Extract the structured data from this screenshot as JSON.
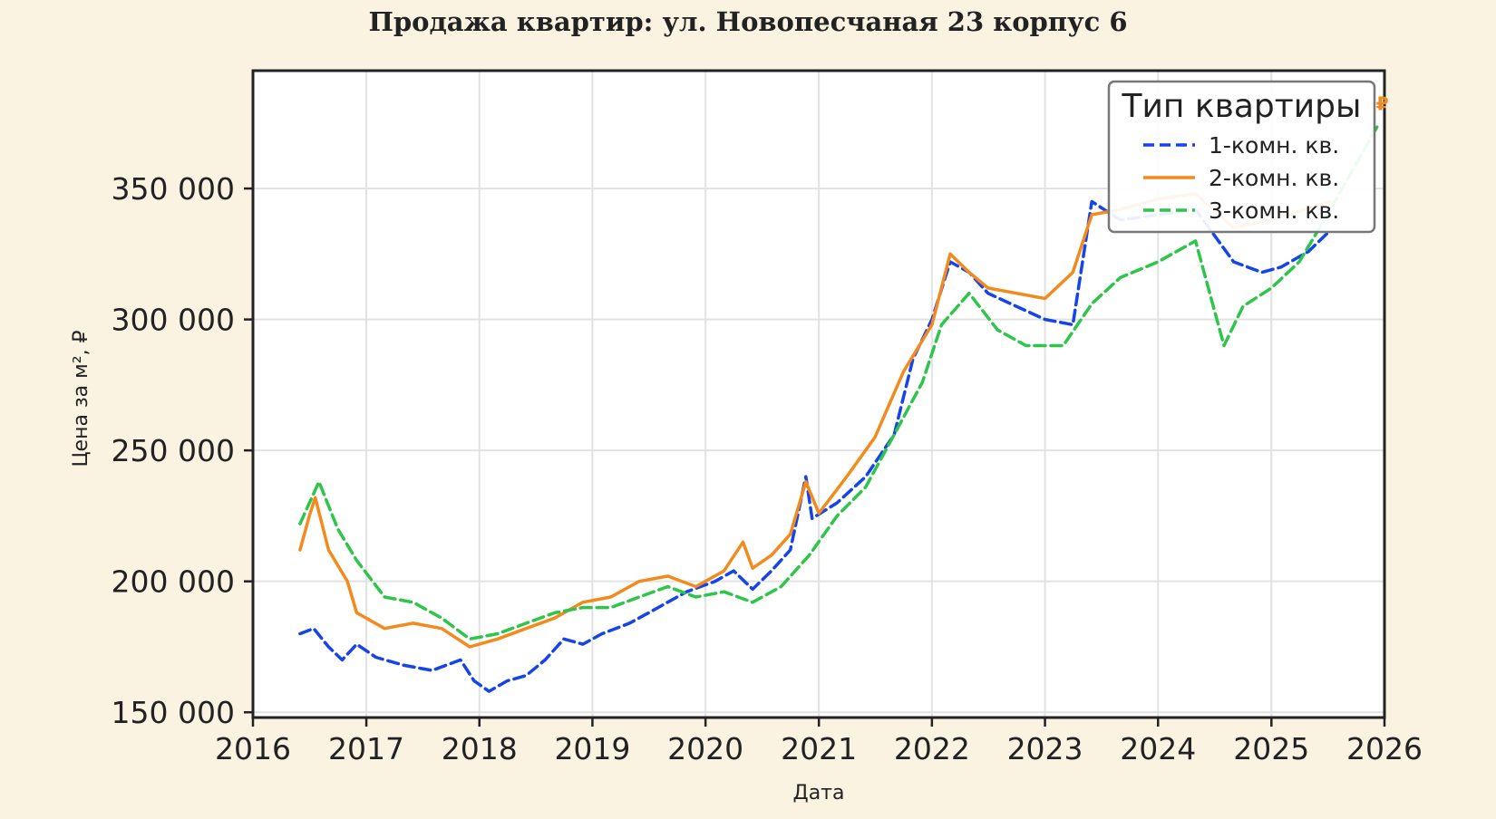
{
  "chart_data": {
    "type": "line",
    "title": "Продажа квартир: ул. Новопесчаная 23 корпус 6",
    "xlabel": "Дата",
    "ylabel": "Цена за м², ₽",
    "xlim": [
      "2016-01-01",
      "2026-01-01"
    ],
    "ylim": [
      148000,
      395000
    ],
    "x_ticks": [
      "2016",
      "2017",
      "2018",
      "2019",
      "2020",
      "2021",
      "2022",
      "2023",
      "2024",
      "2025",
      "2026"
    ],
    "y_ticks": [
      150000,
      200000,
      250000,
      300000,
      350000
    ],
    "y_tick_labels": [
      "150 000",
      "200 000",
      "250 000",
      "300 000",
      "350 000"
    ],
    "grid": true,
    "legend": {
      "title": "Тип квартиры",
      "position": "top-right"
    },
    "series": [
      {
        "name": "1-комн. кв.",
        "color": "#1544e8",
        "style": "dashed",
        "points": [
          [
            "2016-06-01",
            180000
          ],
          [
            "2016-07-15",
            182000
          ],
          [
            "2016-09-01",
            175000
          ],
          [
            "2016-10-15",
            170000
          ],
          [
            "2016-12-01",
            176000
          ],
          [
            "2017-02-01",
            171000
          ],
          [
            "2017-05-01",
            168000
          ],
          [
            "2017-08-01",
            166000
          ],
          [
            "2017-11-01",
            170000
          ],
          [
            "2017-12-15",
            162000
          ],
          [
            "2018-02-01",
            158000
          ],
          [
            "2018-04-01",
            162000
          ],
          [
            "2018-06-01",
            164000
          ],
          [
            "2018-08-01",
            170000
          ],
          [
            "2018-10-01",
            178000
          ],
          [
            "2018-12-01",
            176000
          ],
          [
            "2019-02-01",
            180000
          ],
          [
            "2019-05-01",
            184000
          ],
          [
            "2019-08-01",
            190000
          ],
          [
            "2019-11-01",
            196000
          ],
          [
            "2020-02-01",
            200000
          ],
          [
            "2020-04-01",
            204000
          ],
          [
            "2020-06-01",
            197000
          ],
          [
            "2020-08-01",
            204000
          ],
          [
            "2020-10-01",
            212000
          ],
          [
            "2020-11-20",
            240000
          ],
          [
            "2020-12-10",
            224000
          ],
          [
            "2021-03-01",
            230000
          ],
          [
            "2021-06-01",
            240000
          ],
          [
            "2021-09-01",
            256000
          ],
          [
            "2021-11-01",
            285000
          ],
          [
            "2022-01-01",
            300000
          ],
          [
            "2022-03-01",
            322000
          ],
          [
            "2022-05-01",
            318000
          ],
          [
            "2022-07-01",
            310000
          ],
          [
            "2022-10-01",
            305000
          ],
          [
            "2023-01-01",
            300000
          ],
          [
            "2023-04-01",
            298000
          ],
          [
            "2023-06-01",
            345000
          ],
          [
            "2023-09-01",
            338000
          ],
          [
            "2024-01-01",
            340000
          ],
          [
            "2024-05-01",
            342000
          ],
          [
            "2024-09-01",
            322000
          ],
          [
            "2024-12-01",
            318000
          ],
          [
            "2025-02-01",
            320000
          ],
          [
            "2025-05-01",
            326000
          ],
          [
            "2025-07-10",
            334000
          ]
        ]
      },
      {
        "name": "2-комн. кв.",
        "color": "#f28a1e",
        "style": "solid",
        "points": [
          [
            "2016-06-01",
            212000
          ],
          [
            "2016-07-01",
            225000
          ],
          [
            "2016-07-20",
            232000
          ],
          [
            "2016-09-01",
            212000
          ],
          [
            "2016-11-01",
            200000
          ],
          [
            "2016-12-01",
            188000
          ],
          [
            "2017-03-01",
            182000
          ],
          [
            "2017-06-01",
            184000
          ],
          [
            "2017-09-01",
            182000
          ],
          [
            "2017-12-01",
            175000
          ],
          [
            "2018-03-01",
            178000
          ],
          [
            "2018-06-01",
            182000
          ],
          [
            "2018-09-01",
            186000
          ],
          [
            "2018-12-01",
            192000
          ],
          [
            "2019-03-01",
            194000
          ],
          [
            "2019-06-01",
            200000
          ],
          [
            "2019-09-01",
            202000
          ],
          [
            "2019-12-01",
            198000
          ],
          [
            "2020-03-01",
            204000
          ],
          [
            "2020-05-01",
            215000
          ],
          [
            "2020-06-01",
            205000
          ],
          [
            "2020-08-01",
            210000
          ],
          [
            "2020-10-01",
            218000
          ],
          [
            "2020-11-20",
            238000
          ],
          [
            "2021-01-01",
            226000
          ],
          [
            "2021-04-01",
            240000
          ],
          [
            "2021-07-01",
            255000
          ],
          [
            "2021-10-01",
            280000
          ],
          [
            "2022-01-01",
            298000
          ],
          [
            "2022-03-01",
            325000
          ],
          [
            "2022-05-01",
            318000
          ],
          [
            "2022-07-01",
            312000
          ],
          [
            "2022-10-01",
            310000
          ],
          [
            "2023-01-01",
            308000
          ],
          [
            "2023-04-01",
            318000
          ],
          [
            "2023-06-01",
            340000
          ],
          [
            "2023-09-01",
            342000
          ],
          [
            "2024-01-01",
            346000
          ],
          [
            "2024-05-01",
            348000
          ],
          [
            "2024-09-01",
            335000
          ],
          [
            "2025-01-01",
            338000
          ],
          [
            "2025-07-10",
            345000
          ]
        ]
      },
      {
        "name": "3-комн. кв.",
        "color": "#2fc44a",
        "style": "dashed",
        "points": [
          [
            "2016-06-01",
            222000
          ],
          [
            "2016-08-01",
            238000
          ],
          [
            "2016-10-01",
            220000
          ],
          [
            "2016-12-01",
            208000
          ],
          [
            "2017-03-01",
            194000
          ],
          [
            "2017-06-01",
            192000
          ],
          [
            "2017-09-01",
            186000
          ],
          [
            "2017-12-01",
            178000
          ],
          [
            "2018-03-01",
            180000
          ],
          [
            "2018-06-01",
            184000
          ],
          [
            "2018-09-01",
            188000
          ],
          [
            "2018-12-01",
            190000
          ],
          [
            "2019-03-01",
            190000
          ],
          [
            "2019-06-01",
            194000
          ],
          [
            "2019-09-01",
            198000
          ],
          [
            "2019-12-01",
            194000
          ],
          [
            "2020-03-01",
            196000
          ],
          [
            "2020-06-01",
            192000
          ],
          [
            "2020-09-01",
            198000
          ],
          [
            "2020-12-01",
            210000
          ],
          [
            "2021-03-01",
            225000
          ],
          [
            "2021-06-01",
            236000
          ],
          [
            "2021-09-01",
            256000
          ],
          [
            "2021-12-01",
            276000
          ],
          [
            "2022-02-01",
            298000
          ],
          [
            "2022-05-01",
            310000
          ],
          [
            "2022-08-01",
            296000
          ],
          [
            "2022-11-01",
            290000
          ],
          [
            "2023-03-01",
            290000
          ],
          [
            "2023-06-01",
            306000
          ],
          [
            "2023-09-01",
            316000
          ],
          [
            "2024-01-01",
            322000
          ],
          [
            "2024-05-01",
            330000
          ],
          [
            "2024-08-01",
            290000
          ],
          [
            "2024-10-01",
            305000
          ],
          [
            "2025-01-01",
            312000
          ],
          [
            "2025-04-01",
            322000
          ],
          [
            "2025-07-01",
            340000
          ],
          [
            "2025-12-15",
            375000
          ]
        ]
      }
    ],
    "annotations": [
      {
        "text": "₽",
        "x": "2025-12-25",
        "y": 380000,
        "color": "#f28a1e"
      }
    ]
  }
}
